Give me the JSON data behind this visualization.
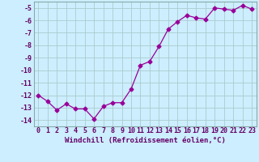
{
  "x": [
    0,
    1,
    2,
    3,
    4,
    5,
    6,
    7,
    8,
    9,
    10,
    11,
    12,
    13,
    14,
    15,
    16,
    17,
    18,
    19,
    20,
    21,
    22,
    23
  ],
  "y": [
    -12.0,
    -12.5,
    -13.2,
    -12.7,
    -13.1,
    -13.1,
    -13.9,
    -12.9,
    -12.6,
    -12.6,
    -11.5,
    -9.6,
    -9.3,
    -8.1,
    -6.7,
    -6.1,
    -5.6,
    -5.8,
    -5.9,
    -5.0,
    -5.1,
    -5.2,
    -4.8,
    -5.1
  ],
  "line_color": "#990099",
  "marker": "D",
  "marker_size": 2.5,
  "bg_color": "#cceeff",
  "grid_color": "#aacccc",
  "xlabel": "Windchill (Refroidissement éolien,°C)",
  "ylim": [
    -14.5,
    -4.5
  ],
  "xlim": [
    -0.5,
    23.5
  ],
  "yticks": [
    -5,
    -6,
    -7,
    -8,
    -9,
    -10,
    -11,
    -12,
    -13,
    -14
  ],
  "xticks": [
    0,
    1,
    2,
    3,
    4,
    5,
    6,
    7,
    8,
    9,
    10,
    11,
    12,
    13,
    14,
    15,
    16,
    17,
    18,
    19,
    20,
    21,
    22,
    23
  ],
  "tick_color": "#660066",
  "label_fontsize": 6.5,
  "tick_fontsize": 6.0,
  "spine_color": "#88aaaa"
}
